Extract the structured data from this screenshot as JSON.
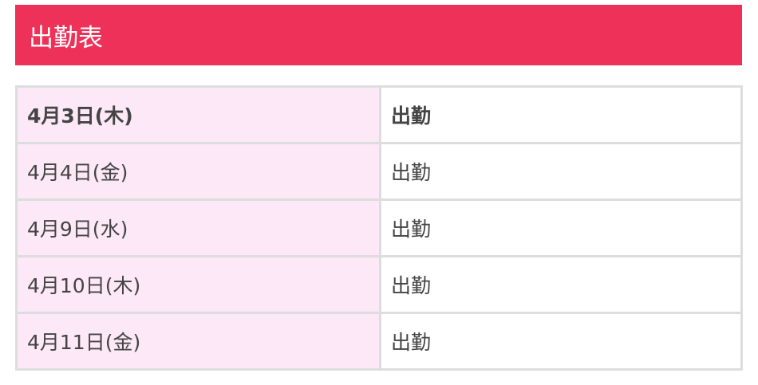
{
  "header": {
    "title": "出勤表",
    "color": "#ee3158"
  },
  "rows": [
    {
      "date": "4月3日(木)",
      "status": "出勤"
    },
    {
      "date": "4月4日(金)",
      "status": "出勤"
    },
    {
      "date": "4月9日(水)",
      "status": "出勤"
    },
    {
      "date": "4月10日(木)",
      "status": "出勤"
    },
    {
      "date": "4月11日(金)",
      "status": "出勤"
    }
  ]
}
